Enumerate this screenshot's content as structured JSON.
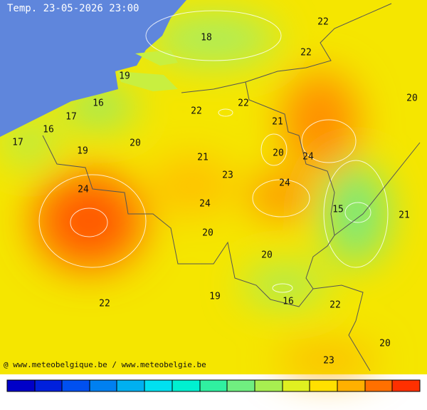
{
  "title": "Temp. 23-05-2026 23:00",
  "footer": "@ www.meteobelgique.be / www.meteobelgie.be",
  "labels": [
    22,
    18,
    22,
    19,
    20,
    16,
    22,
    22,
    21,
    17,
    16,
    17,
    19,
    20,
    20,
    24,
    21,
    23,
    24,
    24,
    24,
    15,
    21,
    20,
    20,
    19,
    16,
    22,
    22,
    20,
    23
  ]
}
